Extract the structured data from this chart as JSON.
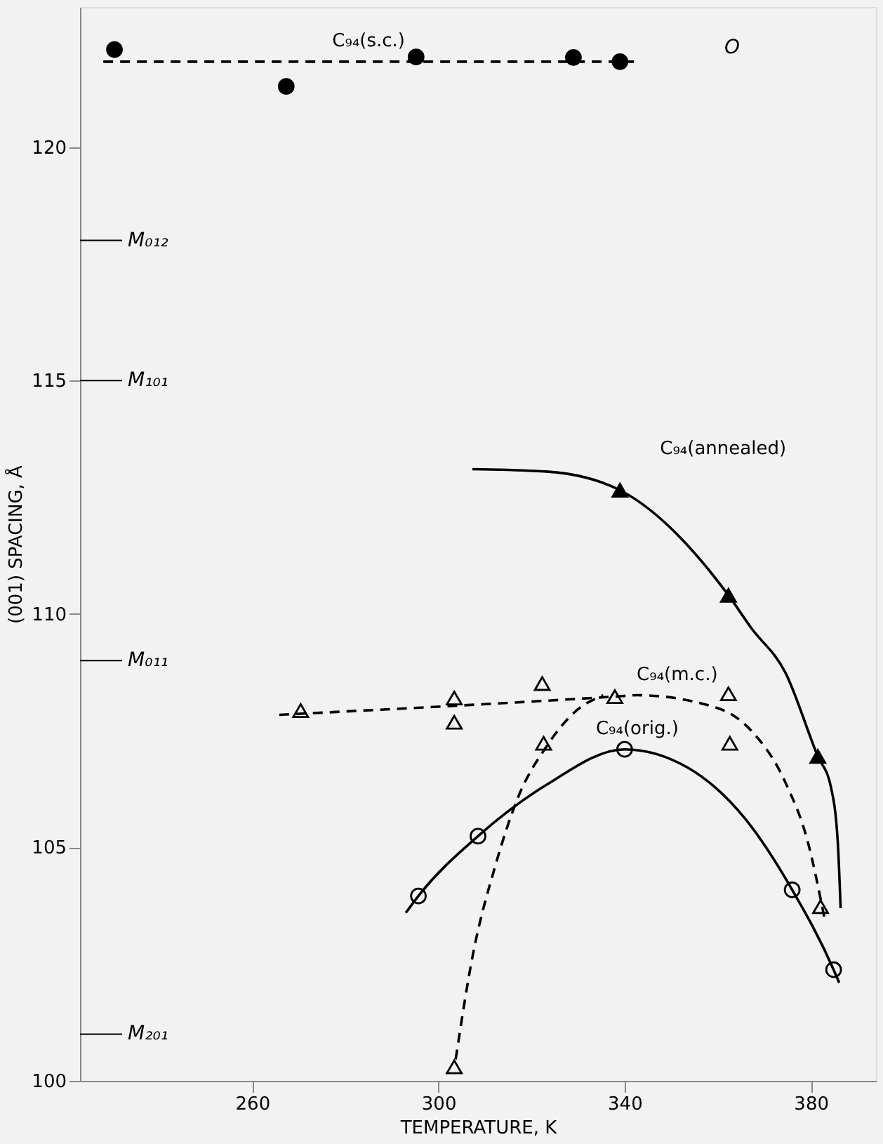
{
  "chart_data": {
    "type": "scatter",
    "xlabel": "TEMPERATURE, K",
    "ylabel": "(001) SPACING, Å",
    "xlim": [
      223,
      394
    ],
    "ylim": [
      100,
      123
    ],
    "xticks": [
      260,
      300,
      340,
      380
    ],
    "yticks": [
      100,
      105,
      110,
      115,
      120
    ],
    "grid": false,
    "series": [
      {
        "type": "scatter",
        "marker": "circle",
        "color": "#000000",
        "x": [
          230.4,
          267.3,
          295.2,
          329.0,
          339.0
        ],
        "values": [
          122.09,
          121.3,
          121.93,
          121.92,
          121.83
        ]
      },
      {
        "type": "line",
        "name": "C₉₄(s.c.)",
        "line_style": "dashed",
        "color": "#000000",
        "x": [
          228,
          342
        ],
        "values": [
          121.83,
          121.83
        ]
      },
      {
        "type": "scatter",
        "marker": "triangle",
        "color": "#000000",
        "x": [
          339.0,
          362.3,
          381.5
        ],
        "values": [
          112.65,
          110.4,
          106.95
        ]
      },
      {
        "type": "line",
        "name": "C₉₄(annealed)",
        "line_style": "solid",
        "color": "#000000",
        "x": [
          307.3,
          323.2,
          339.0,
          362.3,
          367.2,
          374.5,
          381.5,
          384.3,
          385.8,
          386.4
        ],
        "values": [
          113.1,
          113.05,
          112.65,
          110.4,
          109.7,
          108.75,
          106.95,
          106.3,
          105.1,
          103.7
        ]
      },
      {
        "type": "scatter",
        "marker": "triangle",
        "color": "#f2f2f2",
        "x": [
          270.4,
          303.4,
          303.4,
          322.3,
          322.6,
          337.9,
          362.3,
          362.6,
          382.1,
          303.4
        ],
        "values": [
          107.93,
          108.2,
          107.68,
          108.51,
          107.23,
          108.23,
          108.29,
          107.23,
          103.73,
          100.3
        ]
      },
      {
        "type": "line",
        "name": "C₉₄(m.c.)",
        "line_style": "dashed",
        "color": "#000000",
        "x": [
          265.8,
          337.9,
          342.7,
          359.8,
          367.2,
          374.5,
          379.4,
          383.1
        ],
        "values": [
          107.84,
          108.23,
          108.26,
          107.99,
          107.5,
          106.4,
          105.1,
          103.4
        ]
      },
      {
        "type": "line",
        "line_style": "dashed",
        "color": "#000000",
        "x": [
          303.7,
          307.3,
          312.2,
          317.1,
          323.2,
          329.3,
          335.4
        ],
        "values": [
          100.46,
          102.65,
          104.6,
          106.07,
          107.16,
          107.9,
          108.26
        ]
      },
      {
        "type": "scatter",
        "marker": "circle",
        "color": "#f2f2f2",
        "x": [
          295.7,
          308.5,
          340.0,
          376.0,
          384.9
        ],
        "values": [
          103.96,
          105.24,
          107.1,
          104.09,
          102.38
        ]
      },
      {
        "type": "line",
        "name": "C₉₄(orig.)",
        "line_style": "solid",
        "color": "#000000",
        "x": [
          293.0,
          295.7,
          308.5,
          323.2,
          340.0,
          353.7,
          366.0,
          376.0,
          384.9,
          386.1
        ],
        "values": [
          103.6,
          103.96,
          105.24,
          106.34,
          107.1,
          106.7,
          105.6,
          104.09,
          102.38,
          102.1
        ]
      }
    ],
    "ref_lines": [
      {
        "axis": "y",
        "value": 118.0,
        "label": "M₀₁₂"
      },
      {
        "axis": "y",
        "value": 115.0,
        "label": "M₁₀₁"
      },
      {
        "axis": "y",
        "value": 109.0,
        "label": "M₀₁₁"
      },
      {
        "axis": "y",
        "value": 101.0,
        "label": "M₂₀₁"
      }
    ],
    "annotations": [
      "O"
    ]
  }
}
